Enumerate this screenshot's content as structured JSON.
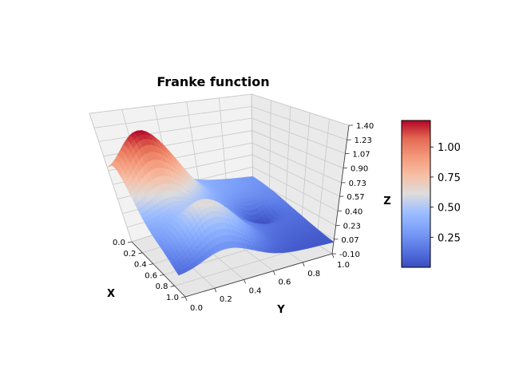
{
  "chart_data": {
    "type": "surface",
    "title": "Franke function",
    "xlabel": "X",
    "ylabel": "Y",
    "zlabel": "Z",
    "colormap": "coolwarm",
    "x_range": [
      0,
      1
    ],
    "y_range": [
      0,
      1
    ],
    "z_range": [
      -0.1,
      1.4
    ],
    "x_ticks": [
      "0.0",
      "0.2",
      "0.4",
      "0.6",
      "0.8",
      "1.0"
    ],
    "y_ticks": [
      "0.0",
      "0.2",
      "0.4",
      "0.6",
      "0.8",
      "1.0"
    ],
    "z_ticks": [
      "-0.10",
      "0.07",
      "0.23",
      "0.40",
      "0.57",
      "0.73",
      "0.90",
      "1.07",
      "1.23",
      "1.40"
    ],
    "colorbar_ticks": [
      "0.25",
      "0.50",
      "0.75",
      "1.00"
    ],
    "colorbar_range": [
      0.0,
      1.22
    ],
    "grid": true,
    "function": "Franke"
  }
}
